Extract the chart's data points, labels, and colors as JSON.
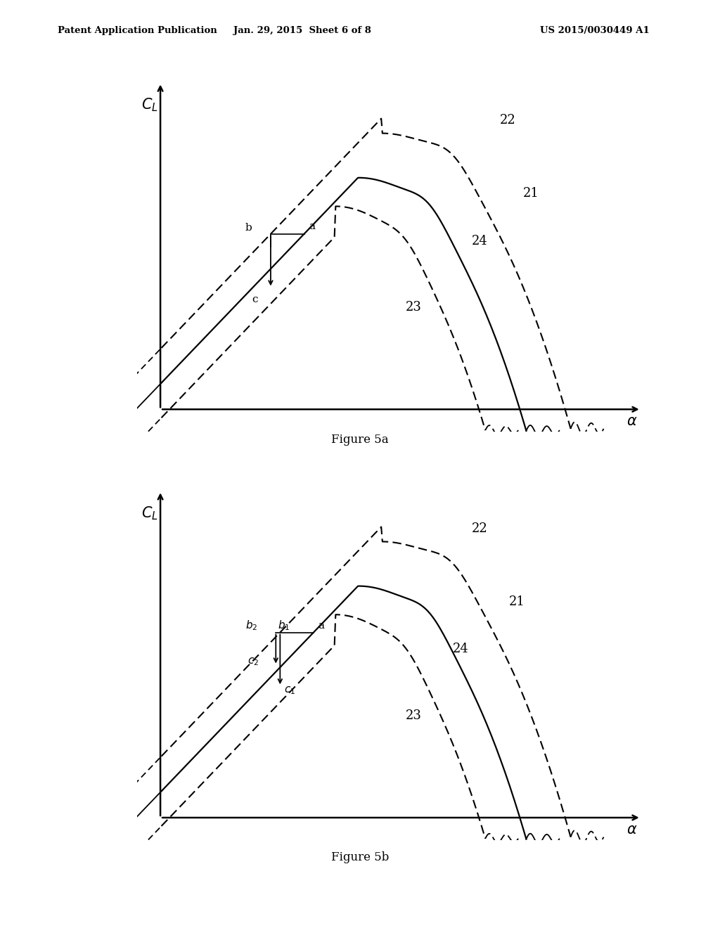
{
  "header_left": "Patent Application Publication",
  "header_mid": "Jan. 29, 2015  Sheet 6 of 8",
  "header_right": "US 2015/0030449 A1",
  "fig_a_caption": "Figure 5a",
  "fig_b_caption": "Figure 5b",
  "background_color": "#ffffff"
}
